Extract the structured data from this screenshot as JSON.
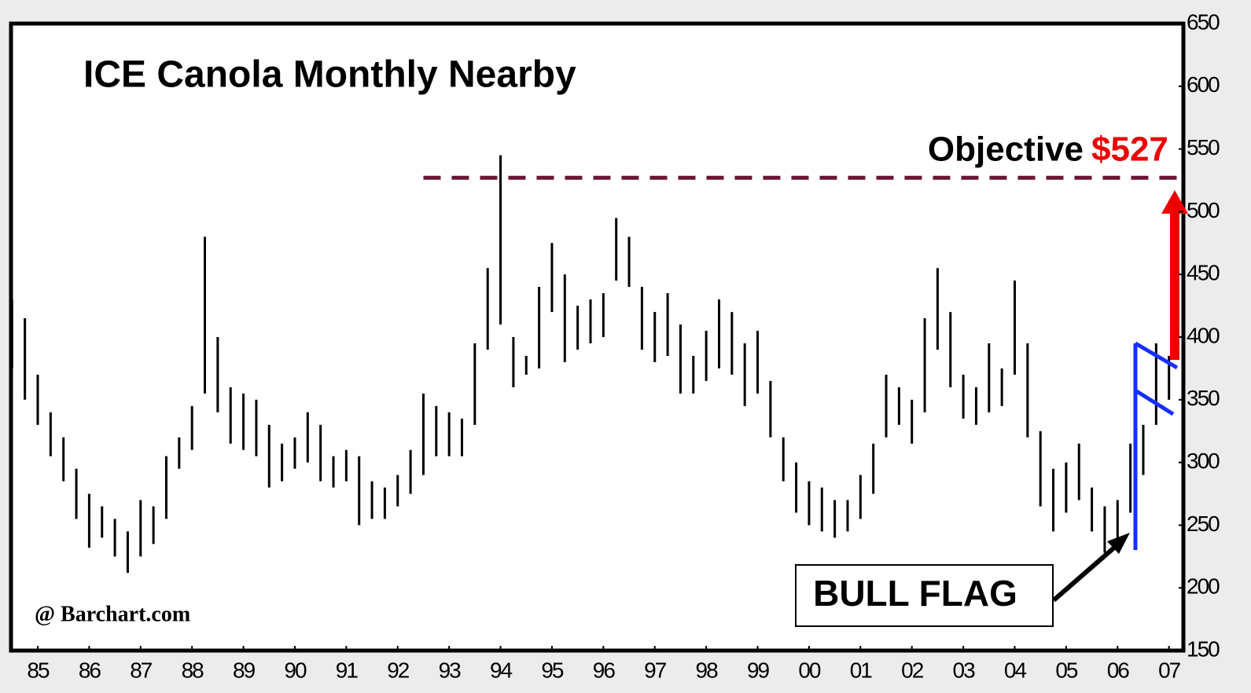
{
  "chart_data": {
    "type": "range-bar",
    "title": "ICE Canola Monthly Nearby",
    "source": "@ Barchart.com",
    "annotation": "BULL FLAG",
    "objective": {
      "label": "Objective",
      "value": 527,
      "value_label": "$527",
      "color": "#6b1530"
    },
    "color": "#000000",
    "x": [
      1984.5,
      1984.75,
      1985,
      1985.25,
      1985.5,
      1985.75,
      1986,
      1986.25,
      1986.5,
      1986.75,
      1987,
      1987.25,
      1987.5,
      1987.75,
      1988,
      1988.25,
      1988.5,
      1988.75,
      1989,
      1989.25,
      1989.5,
      1989.75,
      1990,
      1990.25,
      1990.5,
      1990.75,
      1991,
      1991.25,
      1991.5,
      1991.75,
      1992,
      1992.25,
      1992.5,
      1992.75,
      1993,
      1993.25,
      1993.5,
      1993.75,
      1994,
      1994.25,
      1994.5,
      1994.75,
      1995,
      1995.25,
      1995.5,
      1995.75,
      1996,
      1996.25,
      1996.5,
      1996.75,
      1997,
      1997.25,
      1997.5,
      1997.75,
      1998,
      1998.25,
      1998.5,
      1998.75,
      1999,
      1999.25,
      1999.5,
      1999.75,
      2000,
      2000.25,
      2000.5,
      2000.75,
      2001,
      2001.25,
      2001.5,
      2001.75,
      2002,
      2002.25,
      2002.5,
      2002.75,
      2003,
      2003.25,
      2003.5,
      2003.75,
      2004,
      2004.25,
      2004.5,
      2004.75,
      2005,
      2005.25,
      2005.5,
      2005.75,
      2006,
      2006.25,
      2006.5,
      2006.75,
      2007
    ],
    "high": [
      430,
      415,
      370,
      340,
      320,
      295,
      275,
      265,
      255,
      245,
      270,
      265,
      305,
      320,
      345,
      480,
      400,
      360,
      355,
      350,
      330,
      315,
      320,
      340,
      330,
      305,
      310,
      305,
      285,
      280,
      290,
      310,
      355,
      345,
      340,
      335,
      395,
      455,
      545,
      400,
      385,
      440,
      475,
      450,
      425,
      430,
      435,
      495,
      480,
      440,
      420,
      435,
      410,
      385,
      405,
      430,
      420,
      395,
      405,
      365,
      320,
      300,
      285,
      280,
      270,
      270,
      290,
      315,
      370,
      360,
      350,
      415,
      455,
      420,
      370,
      360,
      395,
      375,
      445,
      395,
      325,
      295,
      300,
      315,
      280,
      265,
      270,
      315,
      330,
      395,
      385
    ],
    "low": [
      375,
      350,
      330,
      305,
      285,
      255,
      232,
      240,
      225,
      212,
      225,
      235,
      255,
      295,
      310,
      355,
      340,
      315,
      310,
      305,
      280,
      285,
      295,
      300,
      285,
      280,
      285,
      250,
      255,
      255,
      265,
      275,
      290,
      305,
      305,
      305,
      330,
      390,
      410,
      360,
      370,
      375,
      420,
      380,
      390,
      395,
      400,
      445,
      440,
      390,
      380,
      385,
      355,
      355,
      365,
      375,
      370,
      345,
      355,
      320,
      285,
      260,
      250,
      245,
      240,
      245,
      255,
      275,
      320,
      330,
      315,
      340,
      390,
      360,
      335,
      330,
      340,
      345,
      370,
      320,
      265,
      245,
      260,
      270,
      245,
      228,
      235,
      260,
      290,
      330,
      350
    ],
    "xlim": [
      1984.48,
      2007.28
    ],
    "xticks": [
      {
        "value": 1985,
        "label": "85"
      },
      {
        "value": 1986,
        "label": "86"
      },
      {
        "value": 1987,
        "label": "87"
      },
      {
        "value": 1988,
        "label": "88"
      },
      {
        "value": 1989,
        "label": "89"
      },
      {
        "value": 1990,
        "label": "90"
      },
      {
        "value": 1991,
        "label": "91"
      },
      {
        "value": 1992,
        "label": "92"
      },
      {
        "value": 1993,
        "label": "93"
      },
      {
        "value": 1994,
        "label": "94"
      },
      {
        "value": 1995,
        "label": "95"
      },
      {
        "value": 1996,
        "label": "96"
      },
      {
        "value": 1997,
        "label": "97"
      },
      {
        "value": 1998,
        "label": "98"
      },
      {
        "value": 1999,
        "label": "99"
      },
      {
        "value": 2000,
        "label": "00"
      },
      {
        "value": 2001,
        "label": "01"
      },
      {
        "value": 2002,
        "label": "02"
      },
      {
        "value": 2003,
        "label": "03"
      },
      {
        "value": 2004,
        "label": "04"
      },
      {
        "value": 2005,
        "label": "05"
      },
      {
        "value": 2006,
        "label": "06"
      },
      {
        "value": 2007,
        "label": "07"
      }
    ],
    "ylim": [
      150,
      650
    ],
    "yticks": [
      150,
      200,
      250,
      300,
      350,
      400,
      450,
      500,
      550,
      600,
      650
    ]
  }
}
